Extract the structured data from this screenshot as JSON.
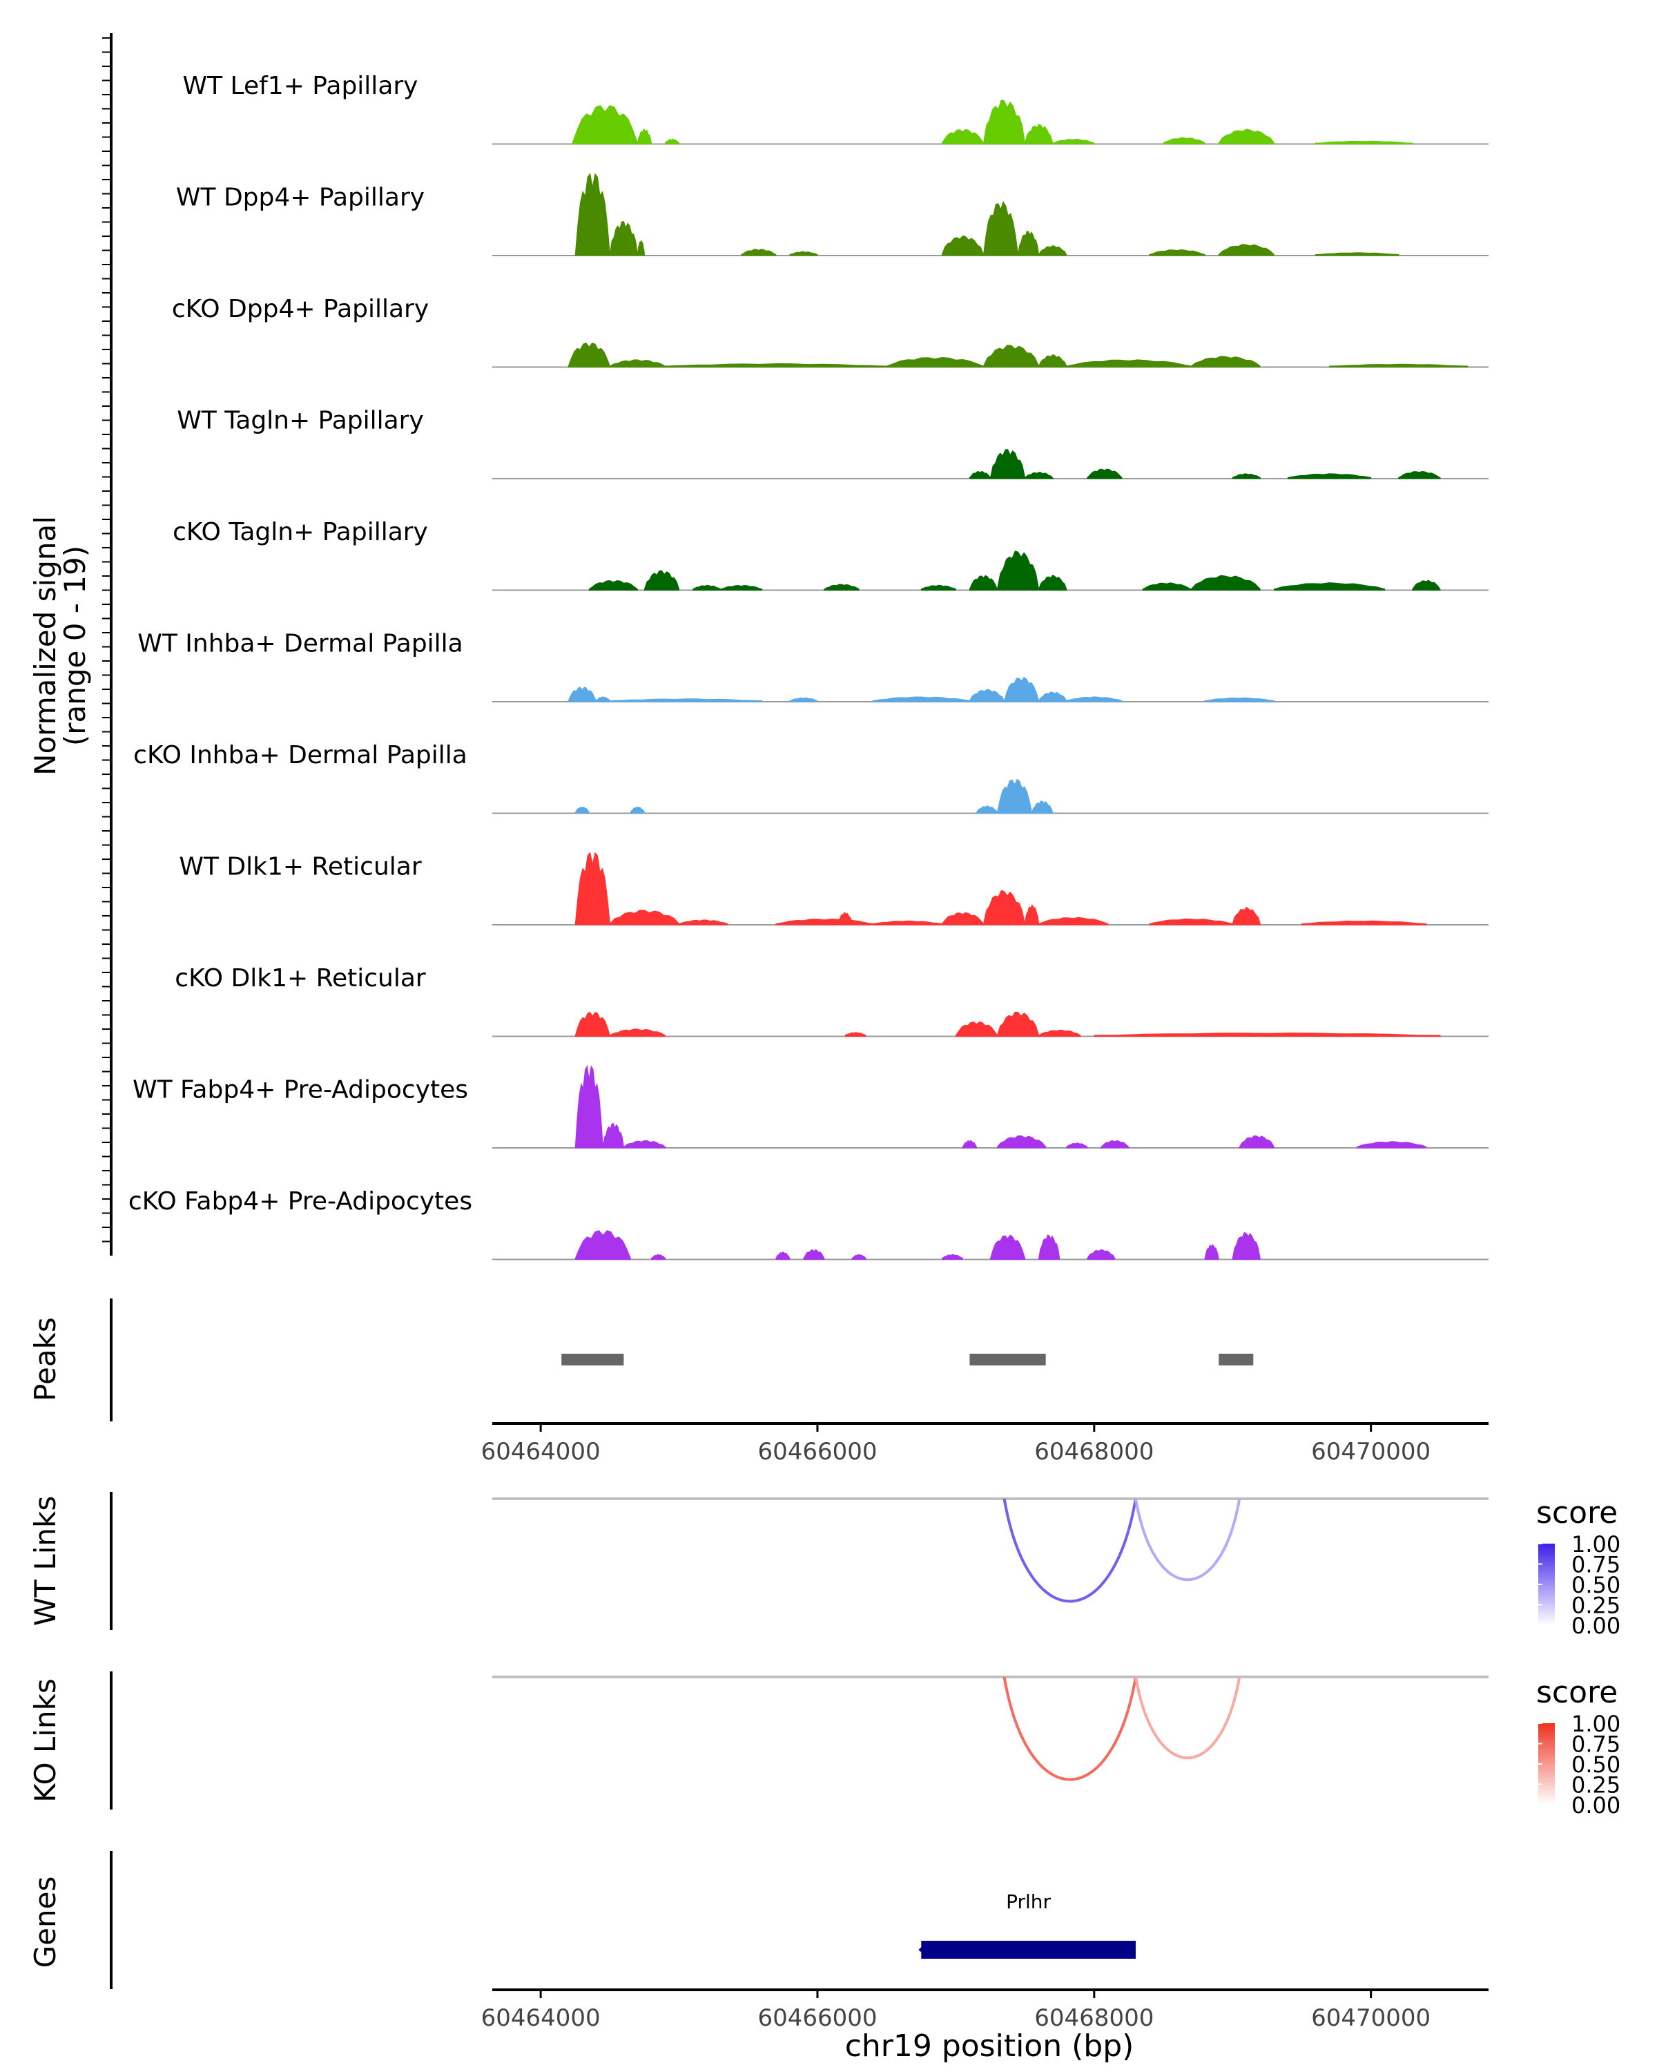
{
  "chart_data": {
    "type": "area",
    "title": "",
    "xlabel": "chr19 position (bp)",
    "xlim": [
      60463650,
      60470850
    ],
    "x_ticks": [
      60464000,
      60466000,
      60468000,
      60470000
    ],
    "x_tick_labels": [
      "60464000",
      "60466000",
      "60468000",
      "60470000"
    ],
    "coverage": {
      "ylabel": "Normalized signal",
      "ylabel_range": "(range 0 - 19)",
      "ylim": [
        0,
        19
      ],
      "tracks": [
        {
          "name": "WT Lef1+ Papillary",
          "color": "#66cc00",
          "peaks": [
            [
              60464230,
              60464700,
              8
            ],
            [
              60464700,
              60464800,
              3
            ],
            [
              60464900,
              60465000,
              1
            ],
            [
              60466900,
              60467200,
              3
            ],
            [
              60467200,
              60467500,
              9
            ],
            [
              60467500,
              60467700,
              4
            ],
            [
              60467700,
              60468000,
              1
            ],
            [
              60468500,
              60468800,
              1.3
            ],
            [
              60468900,
              60469300,
              3
            ],
            [
              60469600,
              60470300,
              0.6
            ]
          ]
        },
        {
          "name": "WT Dpp4+ Papillary",
          "color": "#4a8a00",
          "peaks": [
            [
              60464250,
              60464500,
              17
            ],
            [
              60464500,
              60464700,
              7
            ],
            [
              60464700,
              60464750,
              3
            ],
            [
              60465450,
              60465700,
              1.3
            ],
            [
              60465800,
              60466000,
              0.8
            ],
            [
              60466900,
              60467200,
              4
            ],
            [
              60467200,
              60467450,
              11
            ],
            [
              60467450,
              60467600,
              5
            ],
            [
              60467600,
              60467800,
              2
            ],
            [
              60468400,
              60468800,
              1.2
            ],
            [
              60468900,
              60469300,
              2.3
            ],
            [
              60469600,
              60470200,
              0.6
            ]
          ]
        },
        {
          "name": "cKO Dpp4+ Papillary",
          "color": "#4a8a00",
          "peaks": [
            [
              60464200,
              60464500,
              5
            ],
            [
              60464500,
              60464900,
              1.5
            ],
            [
              60464900,
              60466500,
              0.7
            ],
            [
              60466500,
              60467200,
              2
            ],
            [
              60467200,
              60467600,
              4.5
            ],
            [
              60467600,
              60467800,
              2.5
            ],
            [
              60467800,
              60468700,
              1.5
            ],
            [
              60468700,
              60469200,
              2.2
            ],
            [
              60469700,
              60470700,
              0.6
            ]
          ]
        },
        {
          "name": "WT Tagln+ Papillary",
          "color": "#006600",
          "peaks": [
            [
              60467100,
              60467250,
              1.5
            ],
            [
              60467250,
              60467500,
              6
            ],
            [
              60467500,
              60467700,
              1.3
            ],
            [
              60467950,
              60468200,
              2
            ],
            [
              60469000,
              60469200,
              1
            ],
            [
              60469400,
              60470000,
              1
            ],
            [
              60470200,
              60470500,
              1.5
            ]
          ]
        },
        {
          "name": "cKO Tagln+ Papillary",
          "color": "#006600",
          "peaks": [
            [
              60464350,
              60464700,
              2
            ],
            [
              60464750,
              60465000,
              4
            ],
            [
              60465100,
              60465300,
              1
            ],
            [
              60465300,
              60465600,
              1
            ],
            [
              60466050,
              60466300,
              1.2
            ],
            [
              60466750,
              60467000,
              1
            ],
            [
              60467100,
              60467300,
              3
            ],
            [
              60467300,
              60467600,
              8
            ],
            [
              60467600,
              60467800,
              3
            ],
            [
              60468350,
              60468700,
              1.5
            ],
            [
              60468700,
              60469200,
              3
            ],
            [
              60469300,
              60470100,
              1.5
            ],
            [
              60470300,
              60470500,
              2
            ]
          ]
        },
        {
          "name": "WT Inhba+ Dermal Papilla",
          "color": "#5aa8e6",
          "peaks": [
            [
              60464200,
              60464400,
              3
            ],
            [
              60464400,
              60464500,
              1
            ],
            [
              60464500,
              60465600,
              0.6
            ],
            [
              60465800,
              60466000,
              0.8
            ],
            [
              60466400,
              60467100,
              1
            ],
            [
              60467100,
              60467350,
              2.5
            ],
            [
              60467350,
              60467600,
              5
            ],
            [
              60467600,
              60467800,
              2
            ],
            [
              60467800,
              60468200,
              1
            ],
            [
              60468800,
              60469300,
              0.8
            ]
          ]
        },
        {
          "name": "cKO Inhba+ Dermal Papilla",
          "color": "#5aa8e6",
          "peaks": [
            [
              60464250,
              60464350,
              1.3
            ],
            [
              60464650,
              60464750,
              1.3
            ],
            [
              60467150,
              60467300,
              1.5
            ],
            [
              60467300,
              60467550,
              7
            ],
            [
              60467550,
              60467700,
              2.5
            ]
          ]
        },
        {
          "name": "WT Dlk1+ Reticular",
          "color": "#ff3333",
          "peaks": [
            [
              60464250,
              60464500,
              15
            ],
            [
              60464500,
              60465000,
              3
            ],
            [
              60465000,
              60465350,
              1
            ],
            [
              60465700,
              60466400,
              1.2
            ],
            [
              60466150,
              60466250,
              2.5
            ],
            [
              60466400,
              60466900,
              0.8
            ],
            [
              60466900,
              60467200,
              2.5
            ],
            [
              60467200,
              60467500,
              7
            ],
            [
              60467500,
              60467600,
              4
            ],
            [
              60467600,
              60468100,
              1.5
            ],
            [
              60468400,
              60469000,
              1.2
            ],
            [
              60469000,
              60469200,
              3.5
            ],
            [
              60469500,
              60470400,
              0.8
            ]
          ]
        },
        {
          "name": "cKO Dlk1+ Reticular",
          "color": "#ff3333",
          "peaks": [
            [
              60464250,
              60464500,
              5
            ],
            [
              60464500,
              60464900,
              1.5
            ],
            [
              60466200,
              60466350,
              0.8
            ],
            [
              60467000,
              60467300,
              3
            ],
            [
              60467300,
              60467600,
              5
            ],
            [
              60467600,
              60467900,
              1.3
            ],
            [
              60468000,
              60470500,
              0.7
            ]
          ]
        },
        {
          "name": "WT Fabp4+ Pre-Adipocytes",
          "color": "#aa33ee",
          "peaks": [
            [
              60464250,
              60464450,
              17
            ],
            [
              60464450,
              60464600,
              5
            ],
            [
              60464600,
              60464900,
              1.5
            ],
            [
              60467050,
              60467150,
              1.5
            ],
            [
              60467300,
              60467650,
              2.5
            ],
            [
              60467800,
              60467950,
              1
            ],
            [
              60468050,
              60468250,
              1.5
            ],
            [
              60469050,
              60469300,
              2.5
            ],
            [
              60469900,
              60470400,
              1.3
            ]
          ]
        },
        {
          "name": "cKO Fabp4+ Pre-Adipocytes",
          "color": "#aa33ee",
          "peaks": [
            [
              60464250,
              60464650,
              6
            ],
            [
              60464800,
              60464900,
              1
            ],
            [
              60465700,
              60465800,
              1.5
            ],
            [
              60465900,
              60466050,
              2
            ],
            [
              60466250,
              60466350,
              1
            ],
            [
              60466900,
              60467050,
              1
            ],
            [
              60467250,
              60467500,
              5
            ],
            [
              60467600,
              60467750,
              5
            ],
            [
              60467950,
              60468150,
              2
            ],
            [
              60468800,
              60468900,
              3
            ],
            [
              60469000,
              60469200,
              5.5
            ]
          ]
        }
      ]
    },
    "peaks_track": {
      "label": "Peaks",
      "regions": [
        [
          60464150,
          60464600
        ],
        [
          60467100,
          60467650
        ],
        [
          60468900,
          60469150
        ]
      ]
    },
    "links": [
      {
        "label": "WT Links",
        "legend_title": "score",
        "color_high": "#3d1fe8",
        "color_low": "#ffffff",
        "legend_ticks": [
          "1.00",
          "0.75",
          "0.50",
          "0.25",
          "0.00"
        ],
        "arcs": [
          {
            "start": 60467350,
            "end": 60468300,
            "score": 0.72
          },
          {
            "start": 60468300,
            "end": 60469050,
            "score": 0.38
          }
        ]
      },
      {
        "label": "KO Links",
        "legend_title": "score",
        "color_high": "#ee3320",
        "color_low": "#ffffff",
        "legend_ticks": [
          "1.00",
          "0.75",
          "0.50",
          "0.25",
          "0.00"
        ],
        "arcs": [
          {
            "start": 60467350,
            "end": 60468300,
            "score": 0.72
          },
          {
            "start": 60468300,
            "end": 60469050,
            "score": 0.42
          }
        ]
      }
    ],
    "genes_track": {
      "label": "Genes",
      "genes": [
        {
          "name": "Prlhr",
          "start": 60466750,
          "end": 60468300,
          "color": "#000088"
        }
      ]
    }
  }
}
